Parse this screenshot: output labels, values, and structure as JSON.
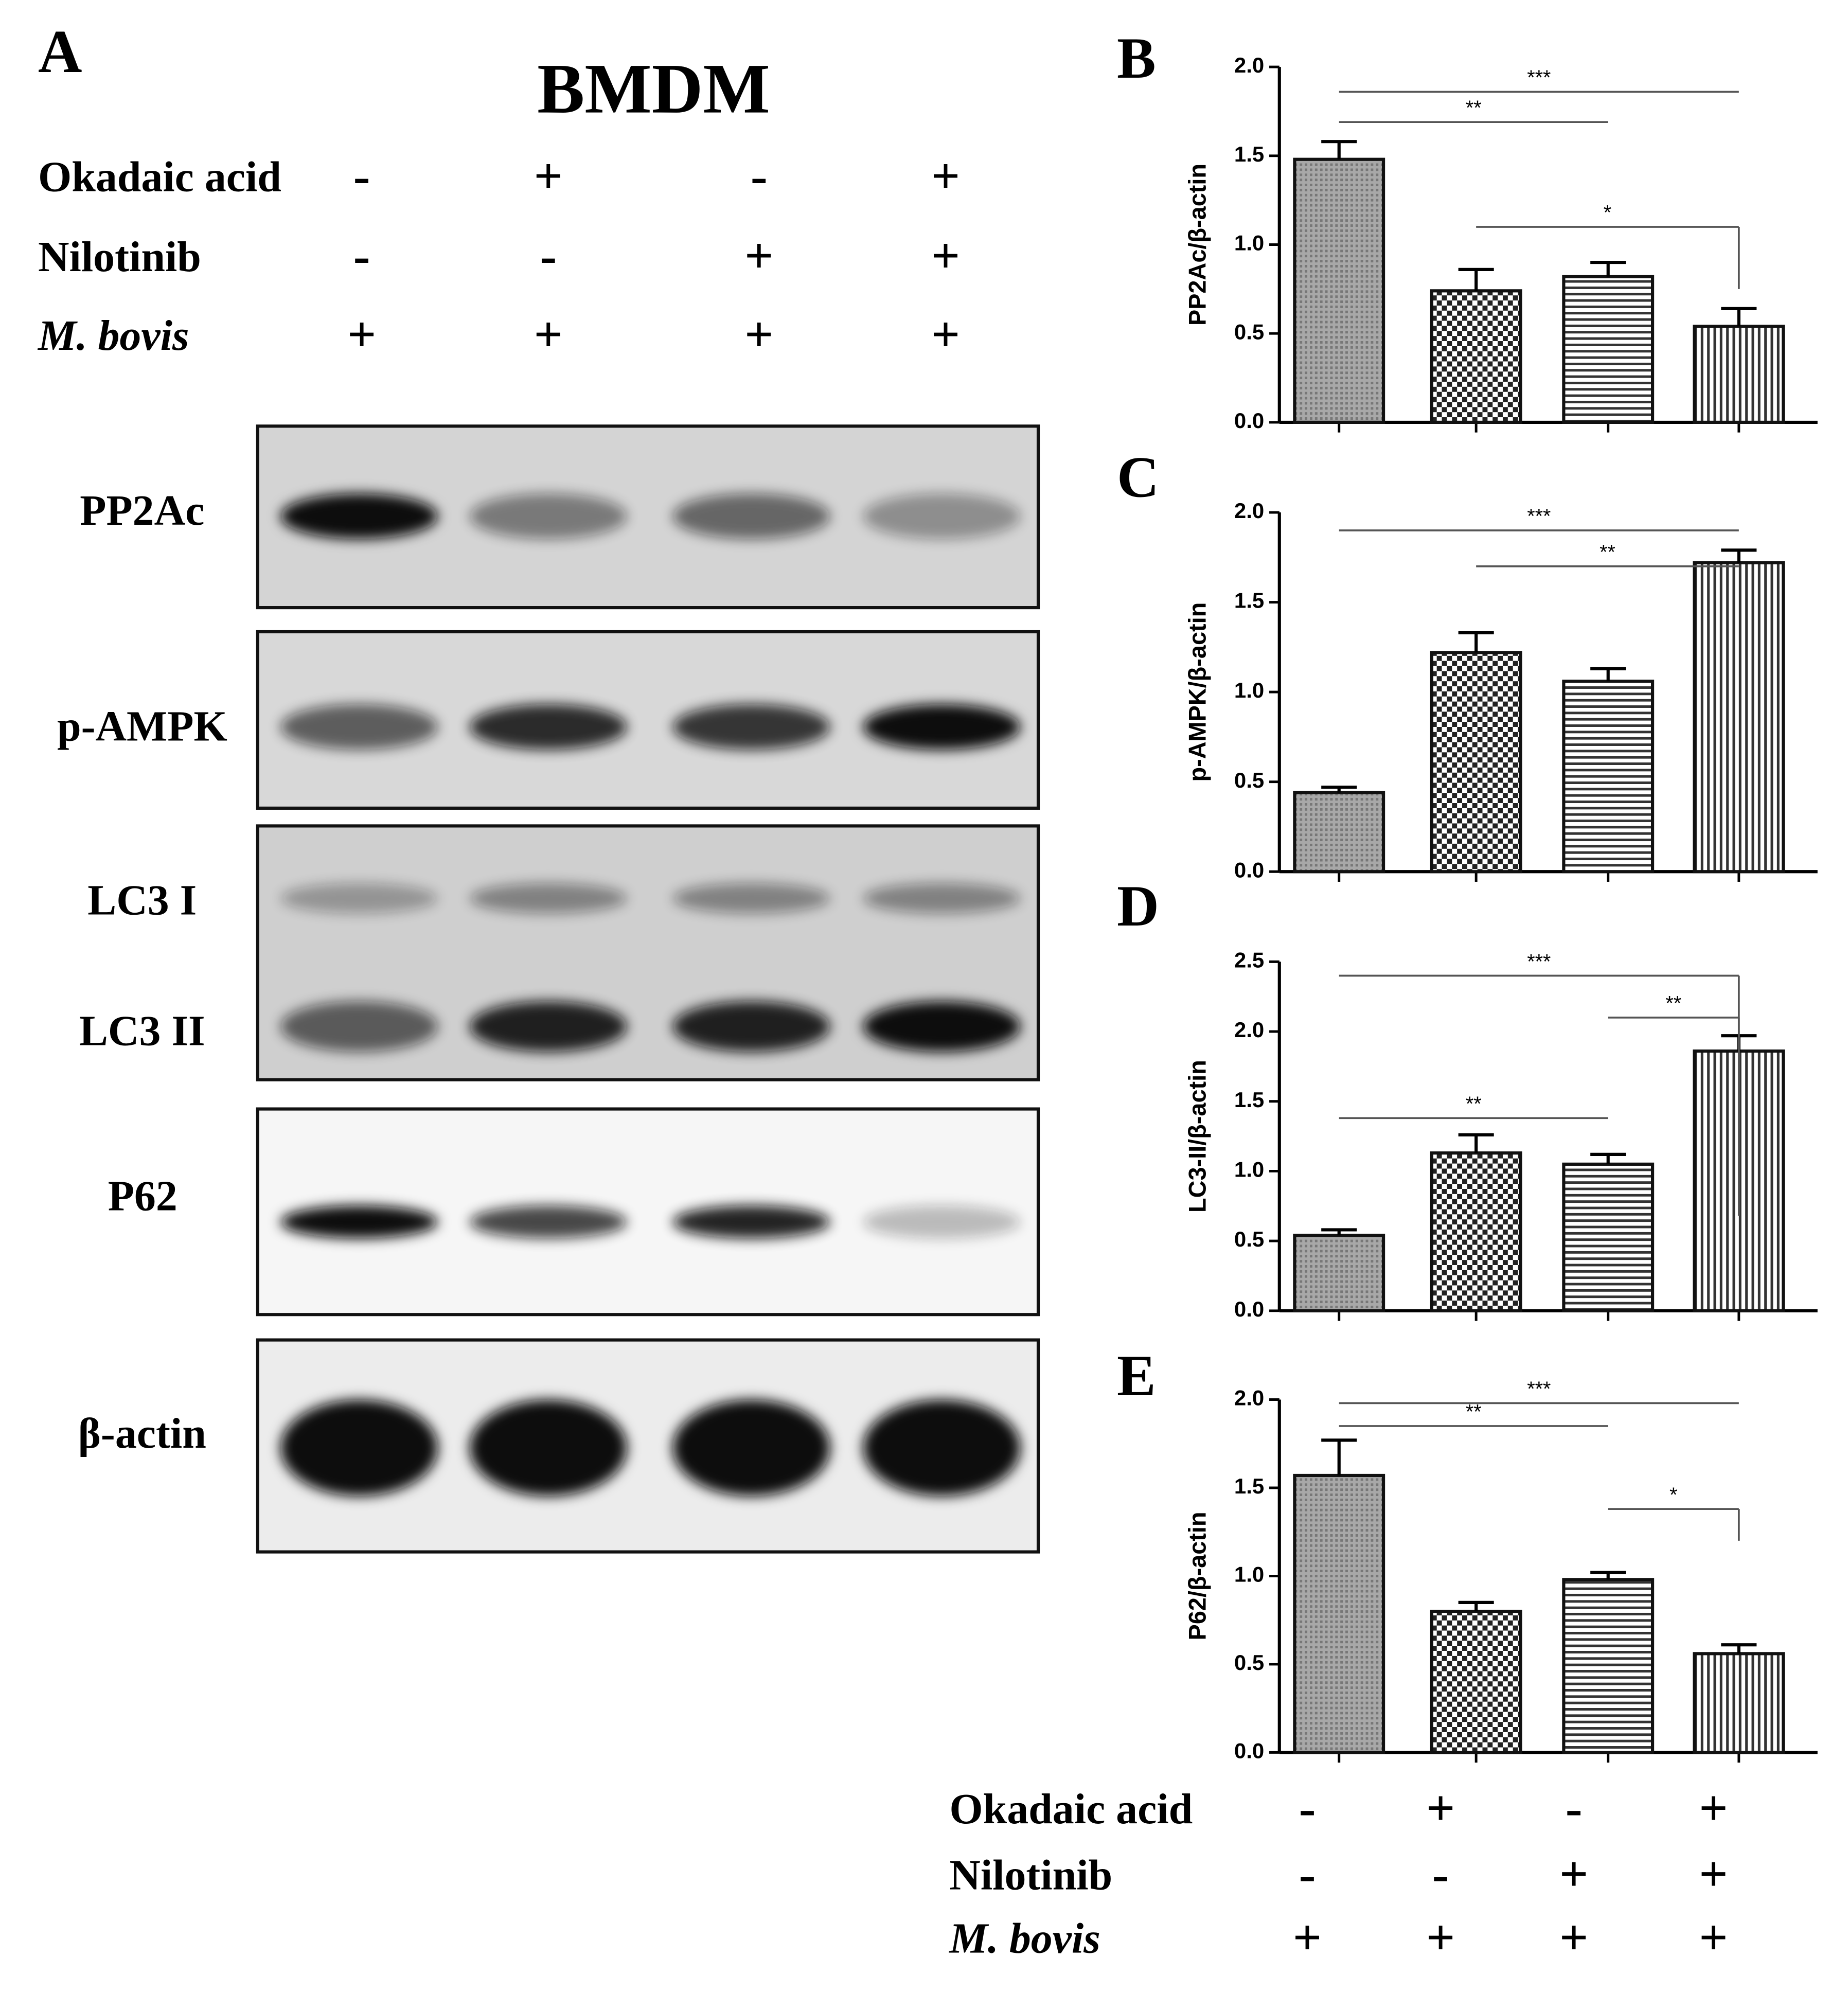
{
  "panel_a": {
    "label": "A",
    "title": "BMDM",
    "conditions": [
      {
        "name": "Okadaic acid",
        "signs": [
          "-",
          "+",
          "-",
          "+"
        ]
      },
      {
        "name": "Nilotinib",
        "signs": [
          "-",
          "-",
          "+",
          "+"
        ]
      },
      {
        "name": "M. bovis",
        "signs": [
          "+",
          "+",
          "+",
          "+"
        ]
      }
    ],
    "blots": [
      "PP2Ac",
      "p-AMPK",
      "LC3 I",
      "LC3 II",
      "P62",
      "β-actin"
    ]
  },
  "bottom_conditions": [
    {
      "name": "Okadaic acid",
      "signs": [
        "-",
        "+",
        "-",
        "+"
      ]
    },
    {
      "name": "Nilotinib",
      "signs": [
        "-",
        "-",
        "+",
        "+"
      ]
    },
    {
      "name": "M. bovis",
      "signs": [
        "+",
        "+",
        "+",
        "+"
      ]
    }
  ],
  "chart_data": [
    {
      "type": "bar",
      "panel": "B",
      "ylabel": "PP2Ac/β-actin",
      "categories": [
        null,
        null,
        null,
        null
      ],
      "values": [
        1.48,
        0.74,
        0.82,
        0.54
      ],
      "errors": [
        0.1,
        0.12,
        0.08,
        0.1
      ],
      "ylim": [
        0,
        2
      ],
      "yticks": [
        {
          "value": 0,
          "label": "0.0"
        },
        {
          "value": 0.5,
          "label": "0.5"
        },
        {
          "value": 1,
          "label": "1.0"
        },
        {
          "value": 1.5,
          "label": "1.5"
        },
        {
          "value": 2,
          "label": "2.0"
        }
      ],
      "significance": [
        "***",
        "**",
        "*"
      ]
    },
    {
      "type": "bar",
      "panel": "C",
      "ylabel": "p-AMPK/β-actin",
      "categories": [
        null,
        null,
        null,
        null
      ],
      "values": [
        0.44,
        1.22,
        1.06,
        1.72
      ],
      "errors": [
        0.03,
        0.11,
        0.07,
        0.07
      ],
      "ylim": [
        0,
        2
      ],
      "yticks": [
        {
          "value": 0,
          "label": "0.0"
        },
        {
          "value": 0.5,
          "label": "0.5"
        },
        {
          "value": 1,
          "label": "1.0"
        },
        {
          "value": 1.5,
          "label": "1.5"
        },
        {
          "value": 2,
          "label": "2.0"
        }
      ],
      "significance": [
        "***",
        "**"
      ]
    },
    {
      "type": "bar",
      "panel": "D",
      "ylabel": "LC3-II/β-actin",
      "categories": [
        null,
        null,
        null,
        null
      ],
      "values": [
        0.54,
        1.13,
        1.05,
        1.86
      ],
      "errors": [
        0.04,
        0.13,
        0.07,
        0.11
      ],
      "ylim": [
        0,
        2.5
      ],
      "yticks": [
        {
          "value": 0,
          "label": "0.0"
        },
        {
          "value": 0.5,
          "label": "0.5"
        },
        {
          "value": 1,
          "label": "1.0"
        },
        {
          "value": 1.5,
          "label": "1.5"
        },
        {
          "value": 2,
          "label": "2.0"
        },
        {
          "value": 2.5,
          "label": "2.5"
        }
      ],
      "significance": [
        "***",
        "**",
        "**"
      ]
    },
    {
      "type": "bar",
      "panel": "E",
      "ylabel": "P62/β-actin",
      "categories": [
        null,
        null,
        null,
        null
      ],
      "values": [
        1.57,
        0.8,
        0.98,
        0.56
      ],
      "errors": [
        0.2,
        0.05,
        0.04,
        0.05
      ],
      "ylim": [
        0,
        2
      ],
      "yticks": [
        {
          "value": 0,
          "label": "0.0"
        },
        {
          "value": 0.5,
          "label": "0.5"
        },
        {
          "value": 1,
          "label": "1.0"
        },
        {
          "value": 1.5,
          "label": "1.5"
        },
        {
          "value": 2,
          "label": "2.0"
        }
      ],
      "significance": [
        "***",
        "**",
        "*"
      ]
    }
  ]
}
